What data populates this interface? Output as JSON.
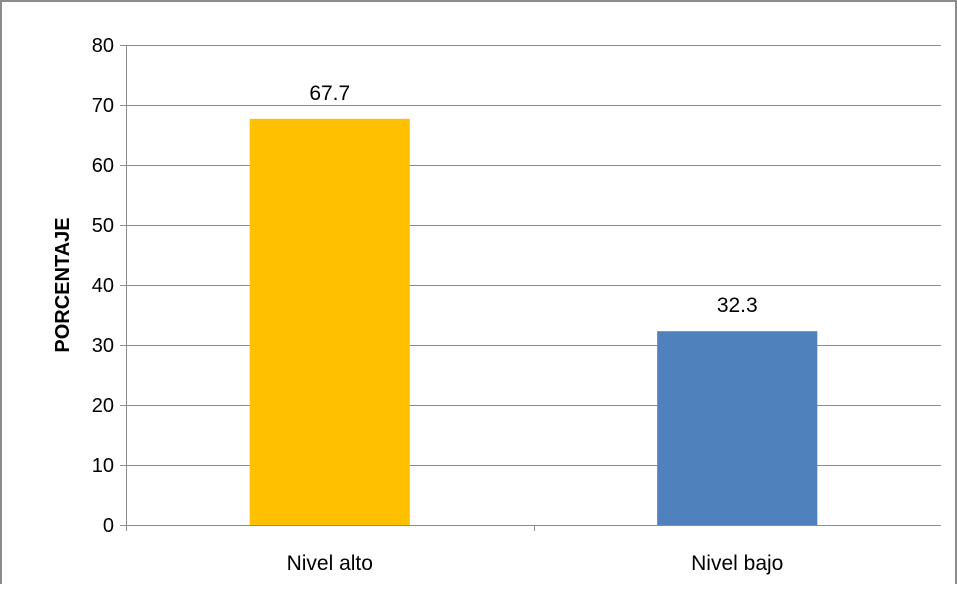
{
  "chart_data": {
    "type": "bar",
    "title": "",
    "xlabel": "",
    "ylabel": "PORCENTAJE",
    "categories": [
      "Nivel alto",
      "Nivel bajo"
    ],
    "values": [
      67.7,
      32.3
    ],
    "data_labels": [
      "67.7",
      "32.3"
    ],
    "colors": [
      "#FFC000",
      "#4F81BD"
    ],
    "ylim": [
      0,
      80
    ],
    "yticks": [
      0,
      10,
      20,
      30,
      40,
      50,
      60,
      70,
      80
    ],
    "grid": true,
    "legend": "none"
  }
}
